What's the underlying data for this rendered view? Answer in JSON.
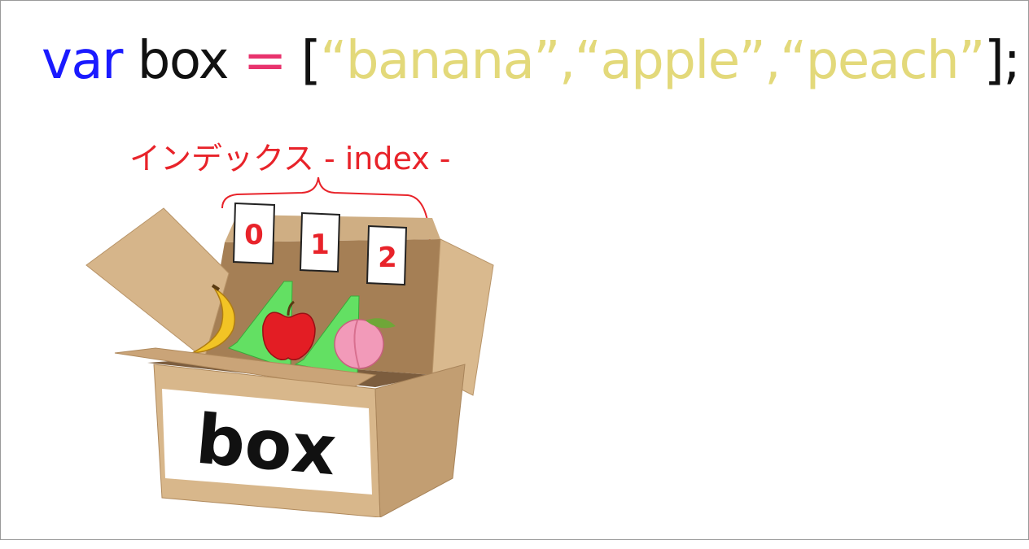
{
  "code": {
    "keyword": "var",
    "identifier": "box",
    "operator": "=",
    "open_bracket": "[",
    "items": [
      "“banana”",
      "“apple”",
      "“peach”"
    ],
    "separator": ",",
    "close": "];",
    "colors": {
      "keyword": "#1a1aff",
      "identifier": "#111111",
      "operator": "#e8336d",
      "string": "#e3d97a",
      "punct": "#111111"
    }
  },
  "index_label": "インデックス - index -",
  "indices": [
    "0",
    "1",
    "2"
  ],
  "box_label": "box",
  "fruits": [
    "banana-icon",
    "apple-icon",
    "peach-icon"
  ]
}
